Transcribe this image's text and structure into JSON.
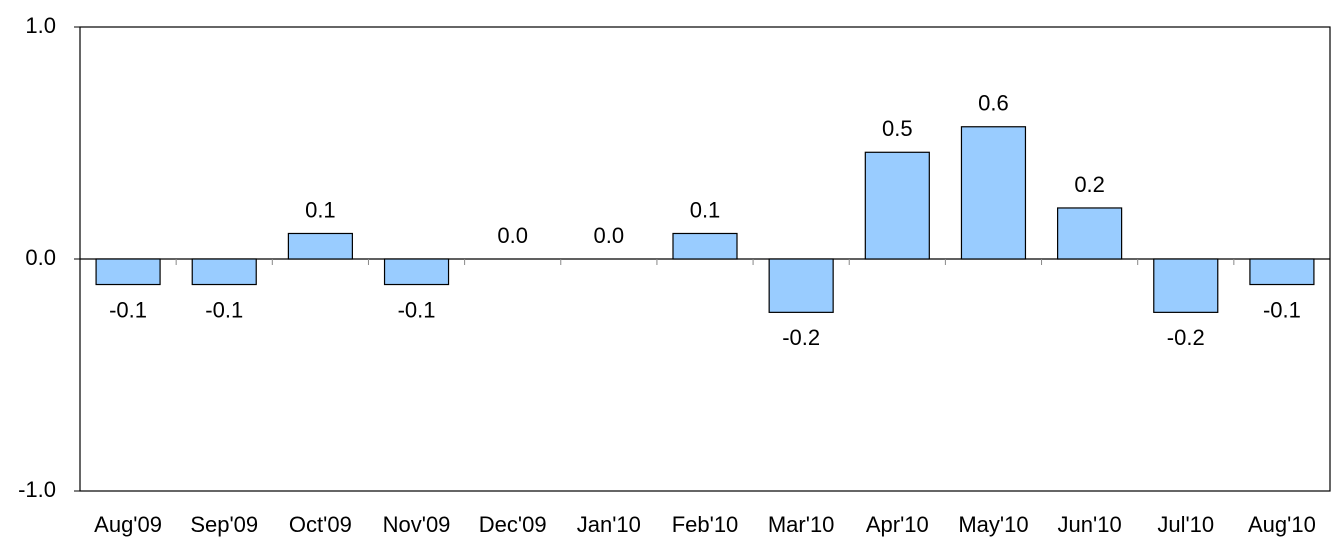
{
  "chart_data": {
    "type": "bar",
    "categories": [
      "Aug'09",
      "Sep'09",
      "Oct'09",
      "Nov'09",
      "Dec'09",
      "Jan'10",
      "Feb'10",
      "Mar'10",
      "Apr'10",
      "May'10",
      "Jun'10",
      "Jul'10",
      "Aug'10"
    ],
    "values": [
      -0.11,
      -0.11,
      0.11,
      -0.11,
      0,
      0,
      0.11,
      -0.23,
      0.46,
      0.57,
      0.22,
      -0.23,
      -0.11
    ],
    "value_labels": [
      "-0.1",
      "-0.1",
      "0.1",
      "-0.1",
      "0.0",
      "0.0",
      "0.1",
      "-0.2",
      "0.5",
      "0.6",
      "0.2",
      "-0.2",
      "-0.1"
    ],
    "color": "#99ccff",
    "ylim": [
      -1,
      1
    ],
    "yticks": [
      {
        "value": -1,
        "label": "-1.0"
      },
      {
        "value": 0,
        "label": "0.0"
      },
      {
        "value": 1,
        "label": "1.0"
      }
    ]
  }
}
